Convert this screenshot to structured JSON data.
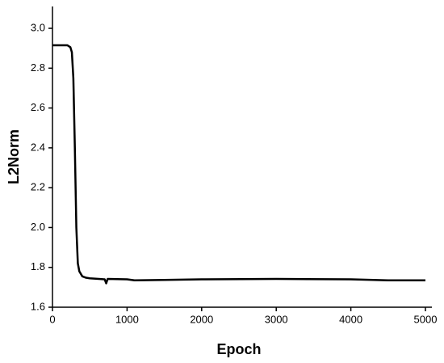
{
  "chart_data": {
    "type": "line",
    "x_label": "Epoch",
    "y_label": "L2Norm",
    "x": [
      0,
      200,
      240,
      260,
      280,
      300,
      320,
      340,
      360,
      400,
      450,
      500,
      700,
      720,
      740,
      1000,
      1100,
      1500,
      2000,
      3000,
      4000,
      4500,
      5000
    ],
    "series": [
      {
        "color": "#000000",
        "values": [
          2.915,
          2.915,
          2.905,
          2.88,
          2.75,
          2.4,
          2.0,
          1.82,
          1.78,
          1.755,
          1.748,
          1.745,
          1.74,
          1.72,
          1.742,
          1.74,
          1.735,
          1.737,
          1.74,
          1.742,
          1.74,
          1.735,
          1.735
        ]
      }
    ],
    "xlim": [
      0,
      5000
    ],
    "xticks": [
      0,
      1000,
      2000,
      3000,
      4000,
      5000
    ],
    "ylim": [
      1.6,
      3.1
    ],
    "yticks": [
      1.6,
      1.8,
      {
        "value": 2,
        "label": "2.0"
      },
      2.2,
      2.4,
      2.6,
      2.8,
      {
        "value": 3,
        "label": "3.0"
      }
    ]
  }
}
